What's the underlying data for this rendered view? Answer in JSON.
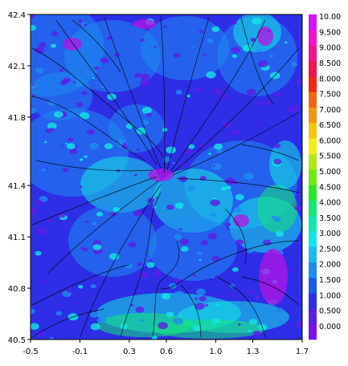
{
  "chart_data": {
    "type": "heatmap",
    "title": "",
    "xlabel": "",
    "ylabel": "",
    "xlim": [
      -0.5,
      1.7
    ],
    "ylim": [
      40.5,
      42.4
    ],
    "x_ticks": [
      -0.5,
      -0.1,
      0.3,
      0.6,
      1.0,
      1.3,
      1.7
    ],
    "x_tick_labels": [
      "-0.5",
      "-0.1",
      "0.3",
      "0.6",
      "1.0",
      "1.3",
      "1.7"
    ],
    "y_ticks": [
      40.5,
      40.8,
      41.1,
      41.4,
      41.8,
      42.1,
      42.4
    ],
    "y_tick_labels": [
      "40.5",
      "40.8",
      "41.1",
      "41.4",
      "41.8",
      "42.1",
      "42.4"
    ],
    "overlay": "streamlines",
    "colorbar": {
      "position": "right",
      "levels": [
        0.0,
        0.5,
        1.0,
        1.5,
        2.0,
        2.5,
        3.0,
        3.5,
        4.0,
        4.5,
        5.0,
        5.5,
        6.0,
        6.5,
        7.0,
        7.5,
        8.0,
        8.5,
        9.0,
        9.5,
        10.0
      ],
      "labels": [
        "0.000",
        "0.500",
        "1.000",
        "1.500",
        "2.000",
        "2.500",
        "3.000",
        "3.500",
        "4.000",
        "4.500",
        "5.000",
        "5.500",
        "6.000",
        "6.500",
        "7.000",
        "7.500",
        "8.000",
        "8.500",
        "9.000",
        "9.500",
        "10.00"
      ],
      "colors": [
        "#7a14e6",
        "#5a1ee6",
        "#2d2ee6",
        "#1e5ae6",
        "#1e8cf0",
        "#1eb9f0",
        "#14e6e6",
        "#14e6b4",
        "#14e678",
        "#28e628",
        "#78e614",
        "#b4e614",
        "#f0f014",
        "#f0c814",
        "#f09614",
        "#f06414",
        "#f02814",
        "#f01450",
        "#f0148c",
        "#f014c8",
        "#d214f0"
      ]
    },
    "field_colors": {
      "low": "#5a1ee6",
      "base": "#2d2ee6",
      "mid": "#1e8cf0",
      "cyan": "#14e6e6",
      "green": "#14e678"
    }
  }
}
